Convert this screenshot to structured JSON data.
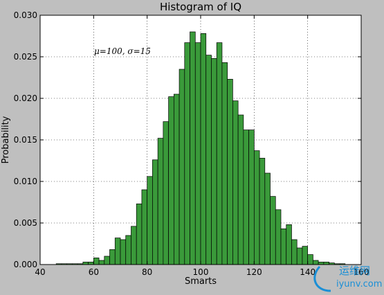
{
  "chart_data": {
    "type": "bar",
    "title": "Histogram of IQ",
    "xlabel": "Smarts",
    "ylabel": "Probability",
    "xlim": [
      40,
      160
    ],
    "ylim": [
      0,
      0.03
    ],
    "x_ticks": [
      "40",
      "60",
      "80",
      "100",
      "120",
      "140",
      "160"
    ],
    "y_ticks": [
      "0.000",
      "0.005",
      "0.010",
      "0.015",
      "0.020",
      "0.025",
      "0.030"
    ],
    "grid": true,
    "annotation": "μ=100, σ=15",
    "bar_color": "#3a9a3a",
    "bin_width": 2,
    "bins_start": [
      46,
      48,
      50,
      52,
      54,
      56,
      58,
      60,
      62,
      64,
      66,
      68,
      70,
      72,
      74,
      76,
      78,
      80,
      82,
      84,
      86,
      88,
      90,
      92,
      94,
      96,
      98,
      100,
      102,
      104,
      106,
      108,
      110,
      112,
      114,
      116,
      118,
      120,
      122,
      124,
      126,
      128,
      130,
      132,
      134,
      136,
      138,
      140,
      142,
      144,
      146,
      148,
      150,
      152
    ],
    "values": [
      0.0001,
      0.0001,
      0.0001,
      0.0001,
      0.0001,
      0.0003,
      0.0003,
      0.0008,
      0.0005,
      0.001,
      0.0018,
      0.0032,
      0.003,
      0.0035,
      0.0046,
      0.0073,
      0.009,
      0.0106,
      0.0126,
      0.0152,
      0.0172,
      0.0202,
      0.0205,
      0.0235,
      0.0267,
      0.028,
      0.0267,
      0.0278,
      0.0252,
      0.0248,
      0.0267,
      0.0243,
      0.0223,
      0.0197,
      0.018,
      0.0162,
      0.0162,
      0.0137,
      0.0128,
      0.011,
      0.0082,
      0.0066,
      0.0043,
      0.0048,
      0.003,
      0.002,
      0.0022,
      0.0012,
      0.0005,
      0.0003,
      0.0003,
      0.0002,
      0.0001,
      0.0001
    ]
  },
  "watermark": {
    "text_cn": "运维网",
    "text_url": "iyunv.com"
  }
}
